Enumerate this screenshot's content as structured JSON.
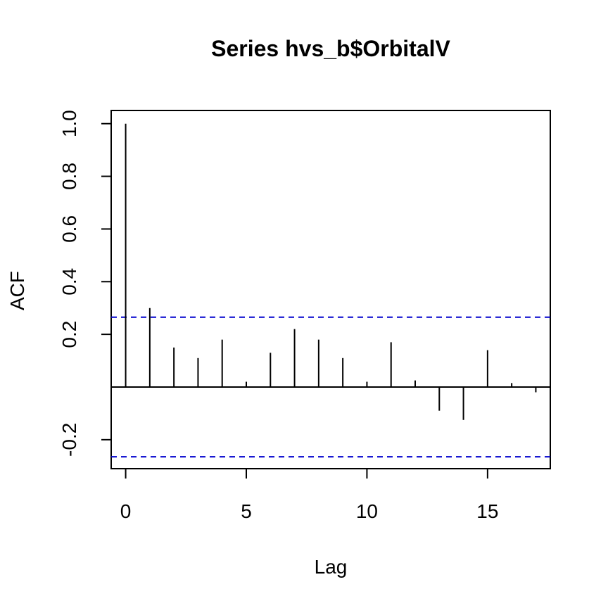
{
  "chart_data": {
    "type": "bar",
    "title": "Series  hvs_b$OrbitalV",
    "xlabel": "Lag",
    "ylabel": "ACF",
    "x": [
      0,
      1,
      2,
      3,
      4,
      5,
      6,
      7,
      8,
      9,
      10,
      11,
      12,
      13,
      14,
      15,
      16,
      17
    ],
    "values": [
      1.0,
      0.3,
      0.15,
      0.11,
      0.18,
      0.02,
      0.13,
      0.22,
      0.18,
      0.11,
      0.02,
      0.17,
      0.025,
      -0.09,
      -0.125,
      0.14,
      0.015,
      -0.02
    ],
    "confidence_bound": 0.265,
    "confidence_color": "#0000cd",
    "xlim": [
      -0.6,
      17.6
    ],
    "ylim": [
      -0.31,
      1.05
    ],
    "xticks": [
      0,
      5,
      10,
      15
    ],
    "xtick_labels": [
      "0",
      "5",
      "10",
      "15"
    ],
    "yticks": [
      -0.2,
      0.2,
      0.4,
      0.6,
      0.8,
      1.0
    ],
    "ytick_labels": [
      "-0.2",
      "0.2",
      "0.4",
      "0.6",
      "0.8",
      "1.0"
    ],
    "grid": false,
    "legend": "none"
  }
}
